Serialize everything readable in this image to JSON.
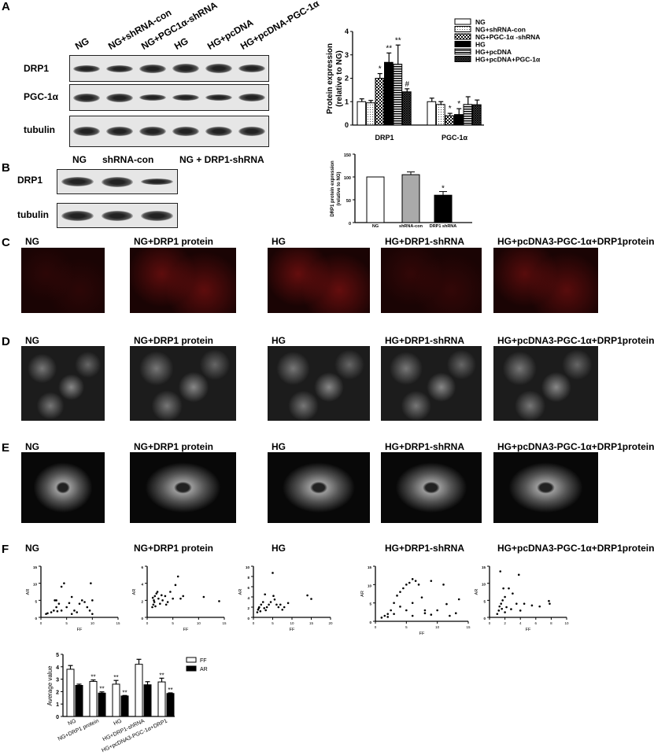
{
  "panels": {
    "a": "A",
    "b": "B",
    "c": "C",
    "d": "D",
    "e": "E",
    "f": "F"
  },
  "panelA": {
    "lanes": [
      "NG",
      "NG+shRNA-con",
      "NG+PGC1α-shRNA",
      "HG",
      "HG+pcDNA",
      "HG+pcDNA-PGC-1α"
    ],
    "rows": [
      "DRP1",
      "PGC-1α",
      "tubulin"
    ]
  },
  "panelB": {
    "lanes": [
      "NG",
      "shRNA-con",
      "NG + DRP1-shRNA"
    ],
    "rows": [
      "DRP1",
      "tubulin"
    ]
  },
  "conditions": [
    "NG",
    "NG+DRP1 protein",
    "HG",
    "HG+DRP1-shRNA",
    "HG+pcDNA3-PGC-1α+DRP1protein"
  ],
  "colors": {
    "c_stain": "#7a1010",
    "background": "#0a0a0a"
  },
  "chart_data": [
    {
      "type": "bar",
      "id": "A",
      "ylabel": "Protein expression (relative to NG)",
      "ylim": [
        0,
        4
      ],
      "yticks": [
        0,
        1,
        2,
        3,
        4
      ],
      "categories": [
        "DRP1",
        "PGC-1α"
      ],
      "series": [
        {
          "name": "NG",
          "values": [
            1.0,
            1.0
          ],
          "errors": [
            0.12,
            0.15
          ],
          "marks": [
            "",
            ""
          ]
        },
        {
          "name": "NG+shRNA-con",
          "values": [
            0.95,
            0.88
          ],
          "errors": [
            0.1,
            0.12
          ],
          "marks": [
            "",
            ""
          ]
        },
        {
          "name": "NG+PGC-1α -shRNA",
          "values": [
            2.0,
            0.4
          ],
          "errors": [
            0.2,
            0.1
          ],
          "marks": [
            "*",
            "*"
          ]
        },
        {
          "name": "HG",
          "values": [
            2.68,
            0.45
          ],
          "errors": [
            0.4,
            0.25
          ],
          "marks": [
            "**",
            "*"
          ]
        },
        {
          "name": "HG+pcDNA",
          "values": [
            2.6,
            0.88
          ],
          "errors": [
            0.82,
            0.33
          ],
          "marks": [
            "**",
            ""
          ]
        },
        {
          "name": "HG+pcDNA+PGC-1α",
          "values": [
            1.42,
            0.87
          ],
          "errors": [
            0.13,
            0.2
          ],
          "marks": [
            "#",
            ""
          ]
        }
      ],
      "legend": "top-right"
    },
    {
      "type": "bar",
      "id": "B",
      "ylabel": "DRP1 protein expression (relative to NG)",
      "ylim": [
        0,
        150
      ],
      "yticks": [
        0,
        50,
        100,
        150
      ],
      "categories": [
        "NG",
        "shRNA-con",
        "DRP1 shRNA"
      ],
      "values": [
        100,
        105,
        60
      ],
      "errors": [
        0,
        6,
        8
      ],
      "marks": [
        "",
        "",
        "*"
      ],
      "colors": [
        "#ffffff",
        "#aaaaaa",
        "#000000"
      ]
    },
    {
      "type": "scatter",
      "id": "F-NG",
      "xlabel": "FF",
      "ylabel": "AR",
      "xlim": [
        0,
        15
      ],
      "ylim": [
        0,
        15
      ],
      "xticks": [
        0,
        5,
        10,
        15
      ],
      "yticks": [
        0,
        5,
        10,
        15
      ],
      "points": [
        [
          1,
          1
        ],
        [
          1.3,
          1.2
        ],
        [
          2,
          1.5
        ],
        [
          2.5,
          2
        ],
        [
          3,
          3
        ],
        [
          3.5,
          4
        ],
        [
          4,
          9
        ],
        [
          4.5,
          10
        ],
        [
          3,
          5
        ],
        [
          4,
          2
        ],
        [
          5,
          3
        ],
        [
          6,
          6
        ],
        [
          6.5,
          2
        ],
        [
          7,
          1.5
        ],
        [
          7.5,
          4
        ],
        [
          8,
          5
        ],
        [
          8.5,
          4.5
        ],
        [
          9,
          3
        ],
        [
          9.5,
          2
        ],
        [
          10,
          5
        ],
        [
          10,
          1
        ],
        [
          9.7,
          10
        ],
        [
          2.7,
          5
        ],
        [
          3.2,
          1.8
        ],
        [
          5.5,
          4.2
        ],
        [
          6,
          1
        ]
      ]
    },
    {
      "type": "scatter",
      "id": "F-NG+DRP1",
      "xlabel": "FF",
      "ylabel": "AR",
      "xlim": [
        0,
        15
      ],
      "ylim": [
        0,
        6
      ],
      "xticks": [
        0,
        5,
        10,
        15
      ],
      "yticks": [
        0,
        2,
        4,
        6
      ],
      "points": [
        [
          1,
          1.2
        ],
        [
          1.2,
          1.5
        ],
        [
          1.3,
          2
        ],
        [
          1.5,
          2.5
        ],
        [
          1.4,
          1.8
        ],
        [
          1.8,
          2.8
        ],
        [
          2,
          3
        ],
        [
          2.2,
          2.2
        ],
        [
          2.5,
          1.6
        ],
        [
          3,
          2
        ],
        [
          3.5,
          2.5
        ],
        [
          4,
          1.8
        ],
        [
          4.5,
          3
        ],
        [
          5,
          2.2
        ],
        [
          5.5,
          3.8
        ],
        [
          6,
          4.8
        ],
        [
          6.5,
          2.2
        ],
        [
          7,
          2.5
        ],
        [
          11,
          2.4
        ],
        [
          14,
          1.9
        ],
        [
          1.6,
          1.3
        ],
        [
          2.8,
          2.6
        ],
        [
          3.7,
          1.5
        ],
        [
          1.1,
          2.3
        ]
      ]
    },
    {
      "type": "scatter",
      "id": "F-HG",
      "xlabel": "FF",
      "ylabel": "AR",
      "xlim": [
        0,
        20
      ],
      "ylim": [
        0,
        10
      ],
      "xticks": [
        0,
        5,
        10,
        15,
        20
      ],
      "yticks": [
        0,
        2,
        4,
        6,
        8,
        10
      ],
      "points": [
        [
          1,
          1
        ],
        [
          1.2,
          1.5
        ],
        [
          1.5,
          2
        ],
        [
          2,
          2.5
        ],
        [
          2.5,
          3
        ],
        [
          3,
          4.5
        ],
        [
          3.5,
          2
        ],
        [
          4,
          2.5
        ],
        [
          4.5,
          3
        ],
        [
          5,
          8.7
        ],
        [
          5.2,
          4.2
        ],
        [
          5.5,
          3.5
        ],
        [
          6,
          2.5
        ],
        [
          6.5,
          2
        ],
        [
          7,
          2.5
        ],
        [
          7.5,
          1.5
        ],
        [
          8,
          2
        ],
        [
          9,
          2.8
        ],
        [
          14,
          4.3
        ],
        [
          15,
          3.6
        ],
        [
          1.8,
          1.2
        ],
        [
          2.8,
          1.8
        ],
        [
          3.2,
          1.4
        ],
        [
          1.4,
          1.8
        ]
      ]
    },
    {
      "type": "scatter",
      "id": "F-HG+DRP1-shRNA",
      "xlabel": "FF",
      "ylabel": "AR",
      "xlim": [
        0,
        15
      ],
      "ylim": [
        0,
        15
      ],
      "xticks": [
        0,
        5,
        10,
        15
      ],
      "yticks": [
        0,
        5,
        10,
        15
      ],
      "points": [
        [
          1,
          1
        ],
        [
          1.5,
          1.5
        ],
        [
          2,
          2
        ],
        [
          2.5,
          3
        ],
        [
          3,
          5
        ],
        [
          3.5,
          7
        ],
        [
          4,
          8
        ],
        [
          4.5,
          9
        ],
        [
          5,
          10
        ],
        [
          5.5,
          10.5
        ],
        [
          6,
          11.5
        ],
        [
          6.5,
          11
        ],
        [
          7,
          10
        ],
        [
          9,
          11
        ],
        [
          11,
          10
        ],
        [
          4,
          4
        ],
        [
          5,
          3
        ],
        [
          6,
          5
        ],
        [
          7.5,
          6.5
        ],
        [
          8,
          3
        ],
        [
          10,
          3
        ],
        [
          11.5,
          4.7
        ],
        [
          13.5,
          6
        ],
        [
          12,
          1.5
        ],
        [
          13,
          2.2
        ],
        [
          6,
          1.5
        ],
        [
          8,
          2.2
        ],
        [
          3,
          2
        ],
        [
          2,
          1.2
        ],
        [
          9,
          1.8
        ]
      ]
    },
    {
      "type": "scatter",
      "id": "F-HG+pcDNA3-PGC-1α+DRP1",
      "xlabel": "FF",
      "ylabel": "AR",
      "xlim": [
        0,
        10
      ],
      "ylim": [
        0,
        15
      ],
      "xticks": [
        0,
        2,
        4,
        6,
        8,
        10
      ],
      "yticks": [
        0,
        5,
        10,
        15
      ],
      "points": [
        [
          1,
          1
        ],
        [
          1.2,
          2
        ],
        [
          1.4,
          13.5
        ],
        [
          1.5,
          4
        ],
        [
          1.8,
          8.5
        ],
        [
          2,
          6
        ],
        [
          2.2,
          3
        ],
        [
          2.5,
          8.5
        ],
        [
          3,
          7
        ],
        [
          3.8,
          12.5
        ],
        [
          3.5,
          4
        ],
        [
          4,
          2
        ],
        [
          4.5,
          4
        ],
        [
          5.5,
          3.5
        ],
        [
          6.5,
          3.2
        ],
        [
          7.7,
          4.8
        ],
        [
          7.8,
          4
        ],
        [
          1.6,
          2.5
        ],
        [
          2,
          1.5
        ],
        [
          2.8,
          2.4
        ],
        [
          1.3,
          3.2
        ],
        [
          1.7,
          5
        ]
      ]
    },
    {
      "type": "bar",
      "id": "F-avg",
      "ylabel": "Average value",
      "ylim": [
        0,
        5
      ],
      "yticks": [
        0,
        1,
        2,
        3,
        4,
        5
      ],
      "categories": [
        "NG",
        "NG+DRP1 protein",
        "HG",
        "HG+DRP1-shRNA",
        "HG+pcDNA3-PGC-1α+DRP1"
      ],
      "series": [
        {
          "name": "FF",
          "values": [
            3.8,
            2.82,
            2.6,
            4.2,
            2.78
          ],
          "errors": [
            0.3,
            0.12,
            0.3,
            0.4,
            0.3
          ],
          "marks": [
            "",
            "**",
            "**",
            "",
            "**"
          ]
        },
        {
          "name": "AR",
          "values": [
            2.5,
            1.88,
            1.65,
            2.55,
            1.85
          ],
          "errors": [
            0.1,
            0.1,
            0.04,
            0.25,
            0.05
          ],
          "marks": [
            "",
            "**",
            "**",
            "",
            "**"
          ]
        }
      ],
      "legend": "top-right"
    }
  ]
}
